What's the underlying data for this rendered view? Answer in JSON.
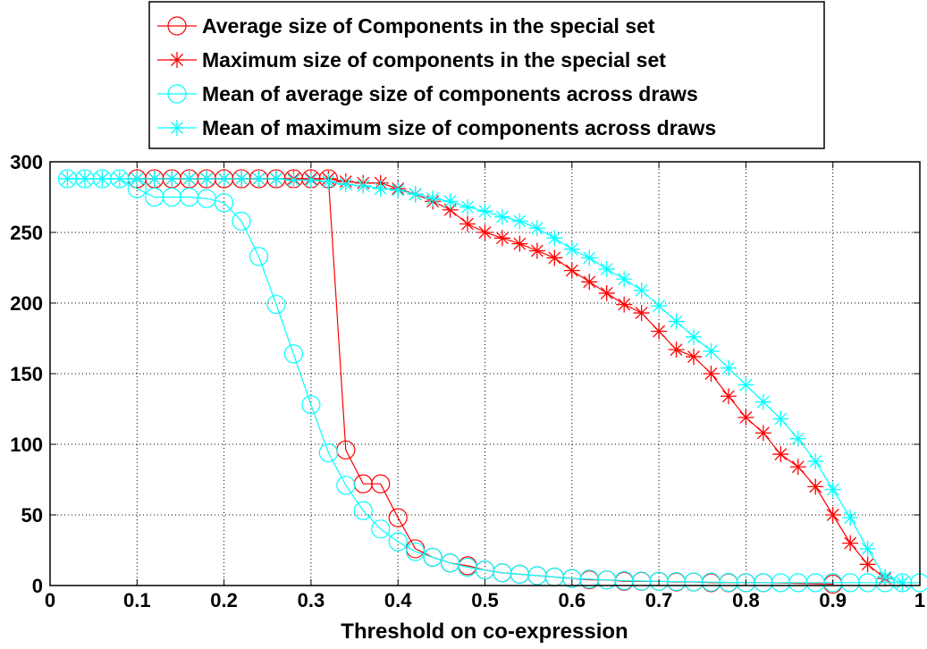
{
  "chart_data": {
    "type": "line",
    "title": "",
    "xlabel": "Threshold on co-expression",
    "ylabel": "",
    "xlim": [
      0,
      1
    ],
    "ylim": [
      0,
      300
    ],
    "xticks": [
      0,
      0.1,
      0.2,
      0.3,
      0.4,
      0.5,
      0.6,
      0.7,
      0.8,
      0.9,
      1
    ],
    "xtick_labels": [
      "0",
      "0.1",
      "0.2",
      "0.3",
      "0.4",
      "0.5",
      "0.6",
      "0.7",
      "0.8",
      "0.9",
      "1"
    ],
    "yticks": [
      0,
      50,
      100,
      150,
      200,
      250,
      300
    ],
    "ytick_labels": [
      "0",
      "50",
      "100",
      "150",
      "200",
      "250",
      "300"
    ],
    "grid": true,
    "legend_position": "top-center, outside above axes",
    "series": [
      {
        "name": "Average size of Components in the special set",
        "color": "#ff0000",
        "marker": "circle",
        "x": [
          0.1,
          0.12,
          0.14,
          0.16,
          0.18,
          0.2,
          0.22,
          0.24,
          0.26,
          0.28,
          0.3,
          0.32,
          0.34,
          0.36,
          0.38,
          0.4,
          0.42,
          0.44,
          0.46,
          0.48,
          0.5,
          0.52,
          0.54,
          0.56,
          0.58,
          0.6,
          0.62,
          0.64,
          0.66,
          0.68,
          0.7,
          0.72,
          0.74,
          0.76,
          0.78,
          0.8,
          0.82,
          0.9
        ],
        "values": [
          288,
          288,
          288,
          288,
          288,
          288,
          288,
          288,
          288,
          288,
          288,
          288,
          96,
          72,
          72,
          48,
          26,
          20,
          16,
          14,
          11,
          9,
          8,
          7,
          6,
          5,
          4,
          4,
          3,
          3,
          3,
          2.5,
          2.5,
          2,
          2,
          2,
          2,
          1
        ]
      },
      {
        "name": "Maximum size of components in the special set",
        "color": "#ff0000",
        "marker": "star",
        "x": [
          0.1,
          0.12,
          0.14,
          0.16,
          0.18,
          0.2,
          0.22,
          0.24,
          0.26,
          0.28,
          0.3,
          0.32,
          0.34,
          0.36,
          0.38,
          0.4,
          0.42,
          0.44,
          0.46,
          0.48,
          0.5,
          0.52,
          0.54,
          0.56,
          0.58,
          0.6,
          0.62,
          0.64,
          0.66,
          0.68,
          0.7,
          0.72,
          0.74,
          0.76,
          0.78,
          0.8,
          0.82,
          0.84,
          0.86,
          0.88,
          0.9,
          0.92,
          0.94,
          0.96
        ],
        "values": [
          288,
          288,
          288,
          288,
          288,
          288,
          288,
          288,
          288,
          288,
          288,
          288,
          286,
          285,
          285,
          281,
          277,
          272,
          266,
          256,
          250,
          246,
          242,
          237,
          232,
          223,
          215,
          207,
          199,
          193,
          180,
          167,
          162,
          150,
          134,
          119,
          108,
          93,
          84,
          70,
          50,
          30,
          15,
          5
        ]
      },
      {
        "name": "Mean of average size of components across draws",
        "color": "#00ffff",
        "marker": "circle",
        "x": [
          0.02,
          0.04,
          0.06,
          0.08,
          0.1,
          0.12,
          0.14,
          0.16,
          0.18,
          0.2,
          0.22,
          0.24,
          0.26,
          0.28,
          0.3,
          0.32,
          0.34,
          0.36,
          0.38,
          0.4,
          0.42,
          0.44,
          0.46,
          0.48,
          0.5,
          0.52,
          0.54,
          0.56,
          0.58,
          0.6,
          0.62,
          0.64,
          0.66,
          0.68,
          0.7,
          0.72,
          0.74,
          0.76,
          0.78,
          0.8,
          0.82,
          0.84,
          0.86,
          0.88,
          0.9,
          0.92,
          0.94,
          0.96,
          0.98,
          1.0
        ],
        "values": [
          288,
          288,
          288,
          288,
          281,
          275,
          275,
          275,
          274,
          271,
          258,
          233,
          199,
          164,
          128,
          94,
          71,
          53,
          40,
          31,
          24,
          20,
          16,
          13,
          11,
          9,
          8,
          7,
          6,
          5,
          4.5,
          4,
          3.5,
          3.2,
          3,
          2.8,
          2.6,
          2.4,
          2.2,
          2,
          2,
          2,
          2,
          2,
          2,
          2,
          2,
          2,
          2,
          2
        ]
      },
      {
        "name": "Mean of maximum size of components across draws",
        "color": "#00ffff",
        "marker": "star",
        "x": [
          0.02,
          0.04,
          0.06,
          0.08,
          0.1,
          0.12,
          0.14,
          0.16,
          0.18,
          0.2,
          0.22,
          0.24,
          0.26,
          0.28,
          0.3,
          0.32,
          0.34,
          0.36,
          0.38,
          0.4,
          0.42,
          0.44,
          0.46,
          0.48,
          0.5,
          0.52,
          0.54,
          0.56,
          0.58,
          0.6,
          0.62,
          0.64,
          0.66,
          0.68,
          0.7,
          0.72,
          0.74,
          0.76,
          0.78,
          0.8,
          0.82,
          0.84,
          0.86,
          0.88,
          0.9,
          0.92,
          0.94,
          0.96,
          0.98
        ],
        "values": [
          288,
          288,
          288,
          288,
          288,
          288,
          288,
          288,
          288,
          288,
          288,
          288,
          288,
          287,
          287,
          286,
          284,
          283,
          281,
          280,
          277,
          274,
          272,
          268,
          265,
          261,
          258,
          253,
          246,
          238,
          232,
          224,
          217,
          209,
          198,
          187,
          176,
          166,
          154,
          142,
          130,
          118,
          104,
          88,
          68,
          48,
          26,
          6,
          2
        ]
      }
    ]
  }
}
